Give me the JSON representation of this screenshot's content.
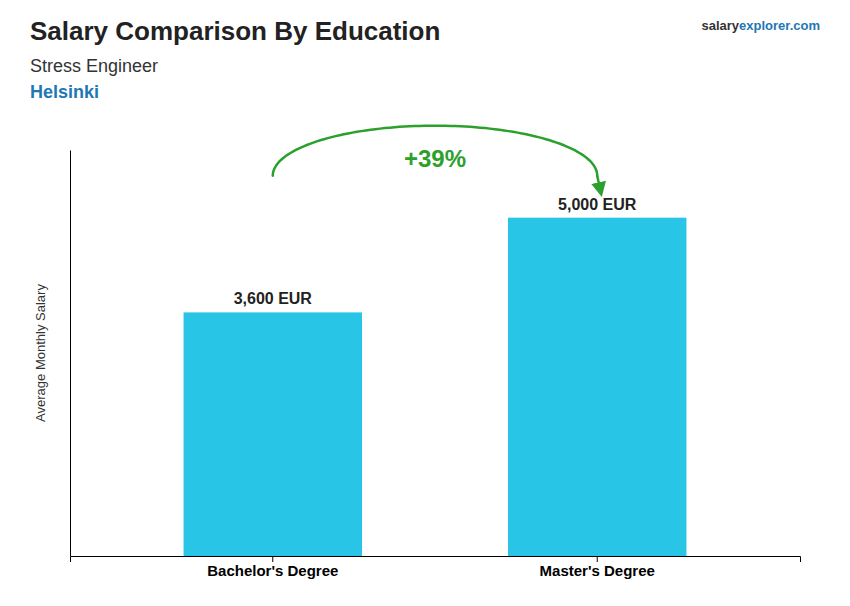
{
  "chart_data": {
    "type": "bar",
    "title": "Salary Comparison By Education",
    "subtitle": [
      "Stress Engineer",
      "Helsinki"
    ],
    "source": [
      "salary",
      "explorer.com"
    ],
    "y_label": "Average Monthly Salary",
    "annotations": [
      "+39%"
    ],
    "categories": [
      "Bachelor's Degree",
      "Master's Degree"
    ],
    "values": [
      3600,
      5000
    ],
    "value_labels": [
      "3,600 EUR",
      "5,000 EUR"
    ],
    "color": "#29C5E6",
    "ylim": [
      0,
      6000
    ],
    "data_labels": true,
    "tick_labels": "x",
    "grid": false
  }
}
